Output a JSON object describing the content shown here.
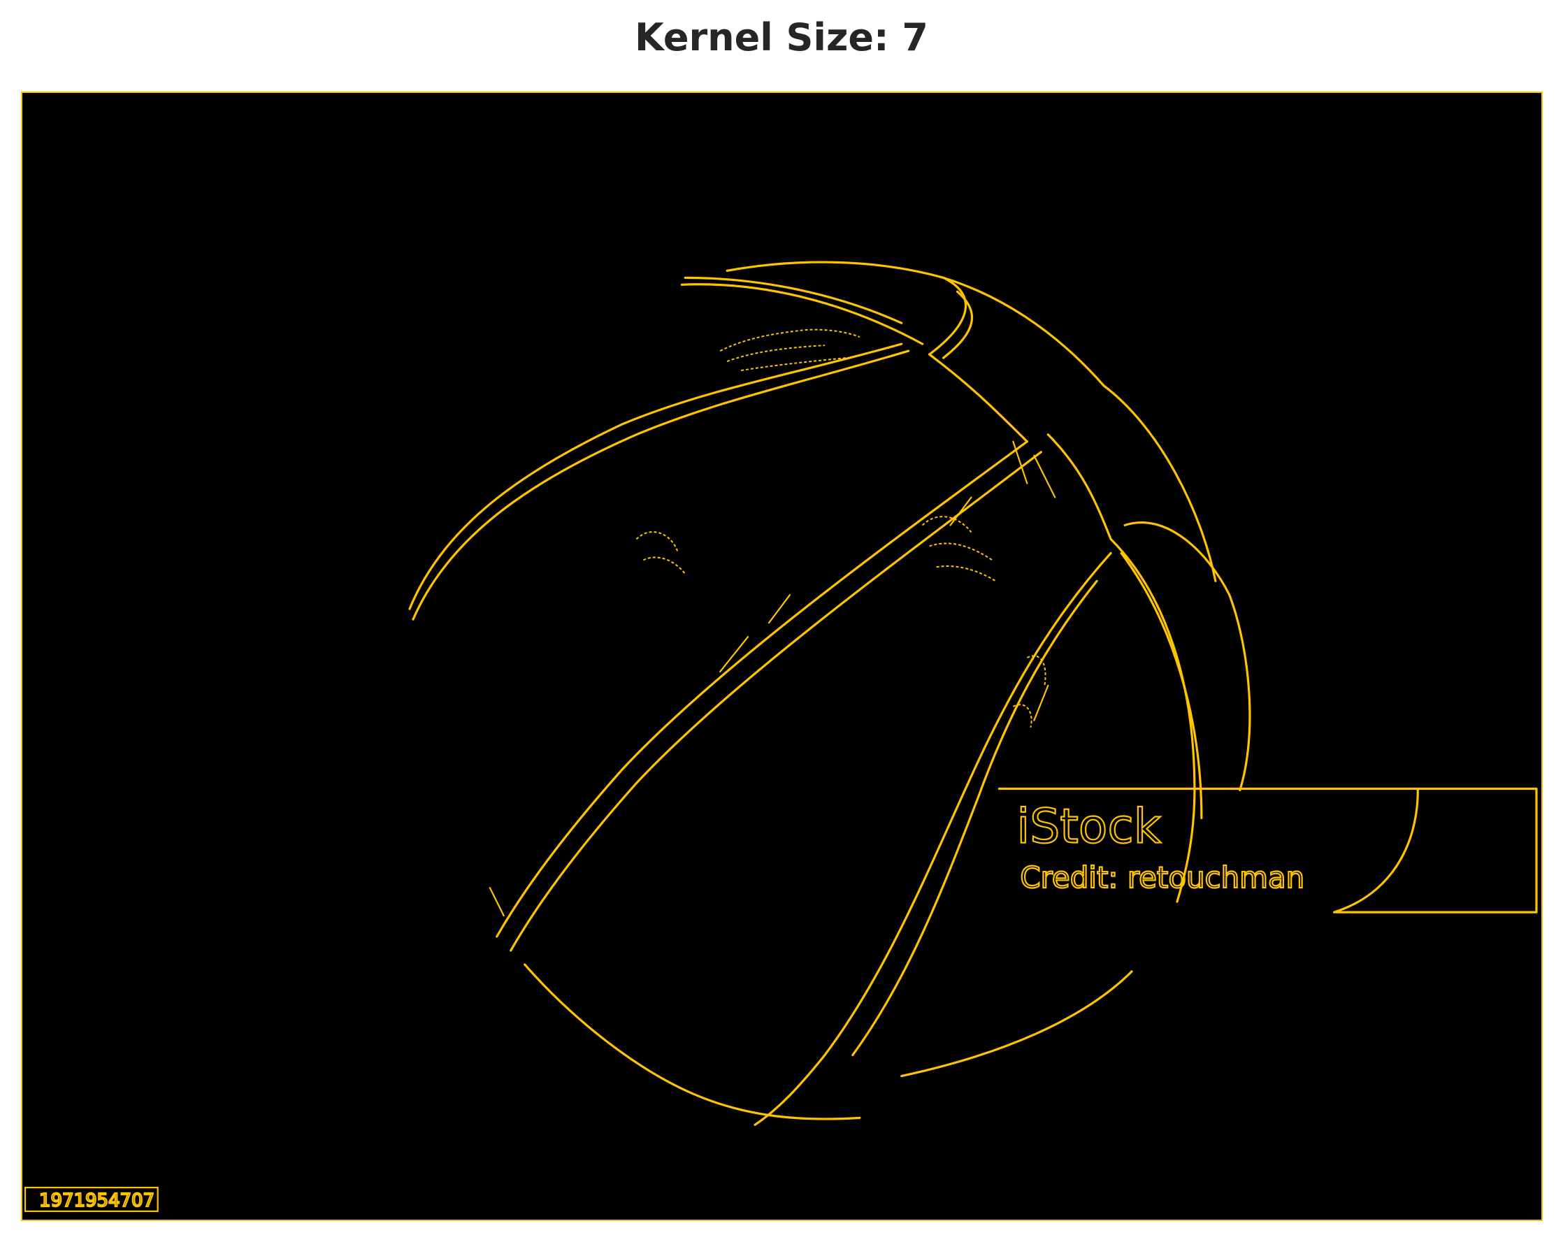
{
  "title": "Kernel Size: 7",
  "watermark": {
    "brand": "iStock",
    "credit": "Credit: retouchman",
    "stock_id": "1971954707"
  },
  "colors": {
    "edge": "#ffc400",
    "background": "#000000",
    "title": "#262626",
    "frame": "#f5c400"
  }
}
